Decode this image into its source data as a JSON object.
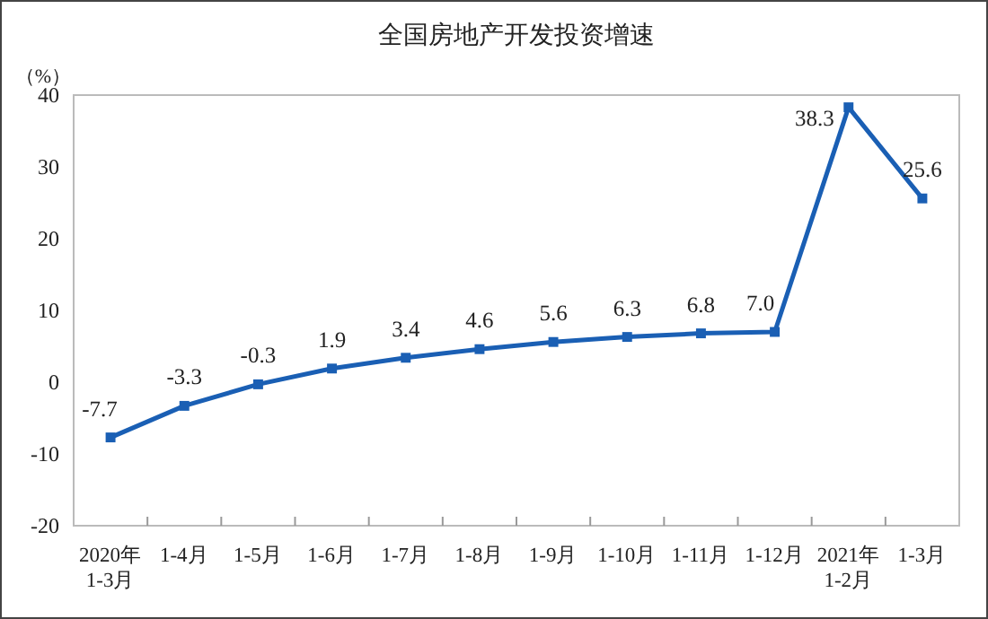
{
  "chart_data": {
    "type": "line",
    "title": "全国房地产开发投资增速",
    "ylabel": "（%）",
    "categories": [
      "2020年\n1-3月",
      "1-4月",
      "1-5月",
      "1-6月",
      "1-7月",
      "1-8月",
      "1-9月",
      "1-10月",
      "1-11月",
      "1-12月",
      "2021年\n1-2月",
      "1-3月"
    ],
    "series": [
      {
        "color": "#1a5fb4",
        "values": [
          -7.7,
          -3.3,
          -0.3,
          1.9,
          3.4,
          4.6,
          5.6,
          6.3,
          6.8,
          7.0,
          38.3,
          25.6
        ],
        "value_labels": [
          "-7.7",
          "-3.3",
          "-0.3",
          "1.9",
          "3.4",
          "4.6",
          "5.6",
          "6.3",
          "6.8",
          "7.0",
          "38.3",
          "25.6"
        ]
      }
    ],
    "ylim": [
      -20,
      40
    ],
    "yticks": [
      -20,
      -10,
      0,
      10,
      20,
      30,
      40
    ],
    "marker": "square",
    "line_style": "solid",
    "grid": false
  }
}
